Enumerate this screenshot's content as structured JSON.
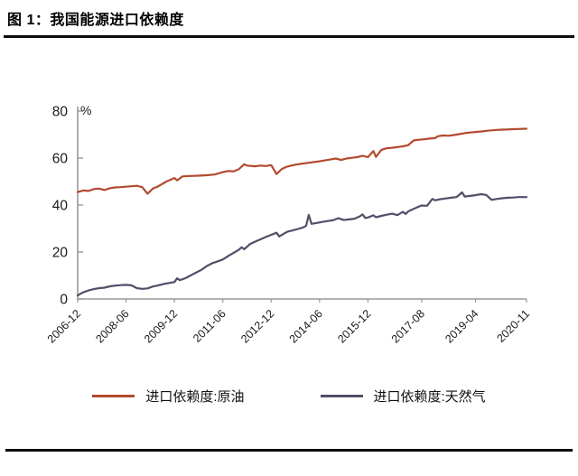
{
  "header": {
    "title": "图 1：我国能源进口依赖度"
  },
  "chart_data": {
    "type": "line",
    "title": "我国能源进口依赖度",
    "unit_label": "%",
    "ylim": [
      0,
      80
    ],
    "y_ticks": [
      0,
      20,
      40,
      60,
      80
    ],
    "x_range_months": 167,
    "x_ticks": [
      {
        "month": 0,
        "label": "2006-12"
      },
      {
        "month": 18,
        "label": "2008-06"
      },
      {
        "month": 36,
        "label": "2009-12"
      },
      {
        "month": 54,
        "label": "2011-06"
      },
      {
        "month": 72,
        "label": "2012-12"
      },
      {
        "month": 90,
        "label": "2014-06"
      },
      {
        "month": 108,
        "label": "2015-12"
      },
      {
        "month": 128,
        "label": "2017-08"
      },
      {
        "month": 148,
        "label": "2019-04"
      },
      {
        "month": 167,
        "label": "2020-11"
      }
    ],
    "grid": false,
    "legend_position": "bottom",
    "axis_color": "#999999",
    "tick_text_color": "#1a1a1a",
    "series": [
      {
        "name": "进口依赖度:原油",
        "color": "#b34a2e",
        "points": [
          [
            0,
            45.5
          ],
          [
            2,
            46.2
          ],
          [
            4,
            46.0
          ],
          [
            6,
            46.8
          ],
          [
            8,
            47.0
          ],
          [
            10,
            46.4
          ],
          [
            12,
            47.2
          ],
          [
            14,
            47.5
          ],
          [
            16,
            47.6
          ],
          [
            18,
            47.8
          ],
          [
            20,
            48.0
          ],
          [
            22,
            48.2
          ],
          [
            24,
            47.6
          ],
          [
            26,
            44.8
          ],
          [
            28,
            47.0
          ],
          [
            30,
            48.0
          ],
          [
            33,
            50.0
          ],
          [
            36,
            51.5
          ],
          [
            37,
            50.5
          ],
          [
            39,
            52.2
          ],
          [
            42,
            52.4
          ],
          [
            45,
            52.5
          ],
          [
            48,
            52.7
          ],
          [
            51,
            53.0
          ],
          [
            54,
            54.0
          ],
          [
            56,
            54.5
          ],
          [
            58,
            54.3
          ],
          [
            60,
            55.3
          ],
          [
            62,
            57.4
          ],
          [
            63,
            56.8
          ],
          [
            66,
            56.5
          ],
          [
            68,
            56.8
          ],
          [
            70,
            56.6
          ],
          [
            72,
            57.0
          ],
          [
            74,
            53.2
          ],
          [
            76,
            55.4
          ],
          [
            78,
            56.4
          ],
          [
            81,
            57.2
          ],
          [
            84,
            57.7
          ],
          [
            86,
            58.0
          ],
          [
            88,
            58.3
          ],
          [
            90,
            58.6
          ],
          [
            92,
            59.0
          ],
          [
            94,
            59.4
          ],
          [
            96,
            59.8
          ],
          [
            98,
            59.2
          ],
          [
            100,
            59.8
          ],
          [
            102,
            60.1
          ],
          [
            104,
            60.4
          ],
          [
            106,
            61.0
          ],
          [
            108,
            60.4
          ],
          [
            110,
            63.0
          ],
          [
            111,
            60.5
          ],
          [
            113,
            63.5
          ],
          [
            115,
            64.2
          ],
          [
            117,
            64.4
          ],
          [
            119,
            64.7
          ],
          [
            121,
            65.0
          ],
          [
            123,
            65.5
          ],
          [
            125,
            67.5
          ],
          [
            127,
            67.8
          ],
          [
            129,
            68.0
          ],
          [
            131,
            68.3
          ],
          [
            133,
            68.5
          ],
          [
            134,
            69.3
          ],
          [
            136,
            69.6
          ],
          [
            138,
            69.5
          ],
          [
            140,
            69.8
          ],
          [
            142,
            70.2
          ],
          [
            144,
            70.6
          ],
          [
            146,
            70.9
          ],
          [
            148,
            71.1
          ],
          [
            150,
            71.3
          ],
          [
            152,
            71.6
          ],
          [
            154,
            71.8
          ],
          [
            156,
            72.0
          ],
          [
            158,
            72.1
          ],
          [
            160,
            72.2
          ],
          [
            162,
            72.3
          ],
          [
            164,
            72.4
          ],
          [
            167,
            72.5
          ]
        ]
      },
      {
        "name": "进口依赖度:天然气",
        "color": "#504f68",
        "points": [
          [
            0,
            1.5
          ],
          [
            2,
            2.8
          ],
          [
            4,
            3.6
          ],
          [
            6,
            4.2
          ],
          [
            8,
            4.6
          ],
          [
            10,
            4.8
          ],
          [
            12,
            5.4
          ],
          [
            14,
            5.7
          ],
          [
            16,
            5.9
          ],
          [
            18,
            6.0
          ],
          [
            20,
            5.8
          ],
          [
            22,
            4.6
          ],
          [
            24,
            4.3
          ],
          [
            26,
            4.5
          ],
          [
            28,
            5.3
          ],
          [
            30,
            5.8
          ],
          [
            32,
            6.4
          ],
          [
            34,
            6.8
          ],
          [
            36,
            7.2
          ],
          [
            37,
            8.8
          ],
          [
            38,
            8.0
          ],
          [
            40,
            8.8
          ],
          [
            42,
            10.0
          ],
          [
            44,
            11.2
          ],
          [
            46,
            12.4
          ],
          [
            48,
            14.0
          ],
          [
            50,
            15.2
          ],
          [
            52,
            16.0
          ],
          [
            54,
            16.8
          ],
          [
            56,
            18.3
          ],
          [
            58,
            19.6
          ],
          [
            60,
            21.0
          ],
          [
            61,
            22.0
          ],
          [
            62,
            21.2
          ],
          [
            64,
            23.3
          ],
          [
            66,
            24.4
          ],
          [
            68,
            25.4
          ],
          [
            70,
            26.4
          ],
          [
            72,
            27.3
          ],
          [
            74,
            28.2
          ],
          [
            75,
            26.6
          ],
          [
            77,
            28.0
          ],
          [
            78,
            28.6
          ],
          [
            80,
            29.2
          ],
          [
            82,
            29.8
          ],
          [
            84,
            30.5
          ],
          [
            85,
            31.2
          ],
          [
            86,
            35.8
          ],
          [
            87,
            32.0
          ],
          [
            89,
            32.4
          ],
          [
            91,
            32.8
          ],
          [
            93,
            33.2
          ],
          [
            95,
            33.5
          ],
          [
            97,
            34.4
          ],
          [
            99,
            33.6
          ],
          [
            101,
            33.9
          ],
          [
            103,
            34.2
          ],
          [
            105,
            35.2
          ],
          [
            106,
            36.0
          ],
          [
            107,
            34.5
          ],
          [
            108,
            34.7
          ],
          [
            110,
            35.6
          ],
          [
            111,
            34.8
          ],
          [
            113,
            35.4
          ],
          [
            115,
            35.9
          ],
          [
            117,
            36.3
          ],
          [
            119,
            35.7
          ],
          [
            121,
            37.1
          ],
          [
            122,
            36.2
          ],
          [
            123,
            37.3
          ],
          [
            125,
            38.4
          ],
          [
            127,
            39.4
          ],
          [
            128,
            39.8
          ],
          [
            130,
            39.7
          ],
          [
            132,
            42.6
          ],
          [
            133,
            42.0
          ],
          [
            135,
            42.5
          ],
          [
            137,
            42.8
          ],
          [
            139,
            43.1
          ],
          [
            141,
            43.4
          ],
          [
            143,
            45.4
          ],
          [
            144,
            43.6
          ],
          [
            146,
            43.9
          ],
          [
            148,
            44.2
          ],
          [
            150,
            44.6
          ],
          [
            152,
            44.3
          ],
          [
            154,
            42.2
          ],
          [
            156,
            42.6
          ],
          [
            158,
            42.9
          ],
          [
            160,
            43.1
          ],
          [
            162,
            43.2
          ],
          [
            164,
            43.4
          ],
          [
            167,
            43.4
          ]
        ]
      }
    ]
  }
}
